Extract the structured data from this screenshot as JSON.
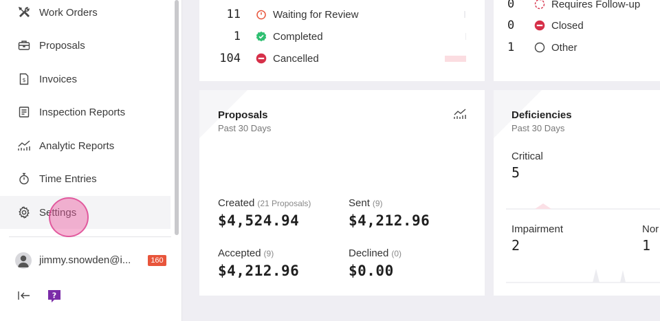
{
  "sidebar": {
    "items": [
      {
        "label": "Work Orders",
        "icon": "wrench-screwdriver-icon"
      },
      {
        "label": "Proposals",
        "icon": "briefcase-icon"
      },
      {
        "label": "Invoices",
        "icon": "invoice-icon"
      },
      {
        "label": "Inspection Reports",
        "icon": "report-icon"
      },
      {
        "label": "Analytic Reports",
        "icon": "analytics-icon"
      },
      {
        "label": "Time Entries",
        "icon": "stopwatch-icon"
      },
      {
        "label": "Settings",
        "icon": "gear-icon"
      }
    ],
    "user": {
      "email": "jimmy.snowden@i...",
      "badge": "160"
    }
  },
  "work_orders_card": {
    "rows": [
      {
        "count": "11",
        "label": "Waiting for Review",
        "status_color": "#e8553b"
      },
      {
        "count": "1",
        "label": "Completed",
        "status_color": "#2fbf71"
      },
      {
        "count": "104",
        "label": "Cancelled",
        "status_color": "#d63049"
      }
    ]
  },
  "status_card": {
    "rows": [
      {
        "count": "0",
        "label": "Requires Follow-up",
        "status_color": "#d63049"
      },
      {
        "count": "0",
        "label": "Closed",
        "status_color": "#d63049"
      },
      {
        "count": "1",
        "label": "Other",
        "status_color": "#555555"
      }
    ]
  },
  "proposals_card": {
    "title": "Proposals",
    "subtitle": "Past 30 Days",
    "created": {
      "label": "Created",
      "note": "(21 Proposals)",
      "value": "$4,524.94"
    },
    "sent": {
      "label": "Sent",
      "note": "(9)",
      "value": "$4,212.96"
    },
    "accepted": {
      "label": "Accepted",
      "note": "(9)",
      "value": "$4,212.96"
    },
    "declined": {
      "label": "Declined",
      "note": "(0)",
      "value": "$0.00"
    }
  },
  "deficiencies_card": {
    "title": "Deficiencies",
    "subtitle": "Past 30 Days",
    "critical": {
      "label": "Critical",
      "value": "5"
    },
    "impairment": {
      "label": "Impairment",
      "value": "2"
    },
    "noncritical": {
      "label": "Nor",
      "value": "1"
    }
  }
}
